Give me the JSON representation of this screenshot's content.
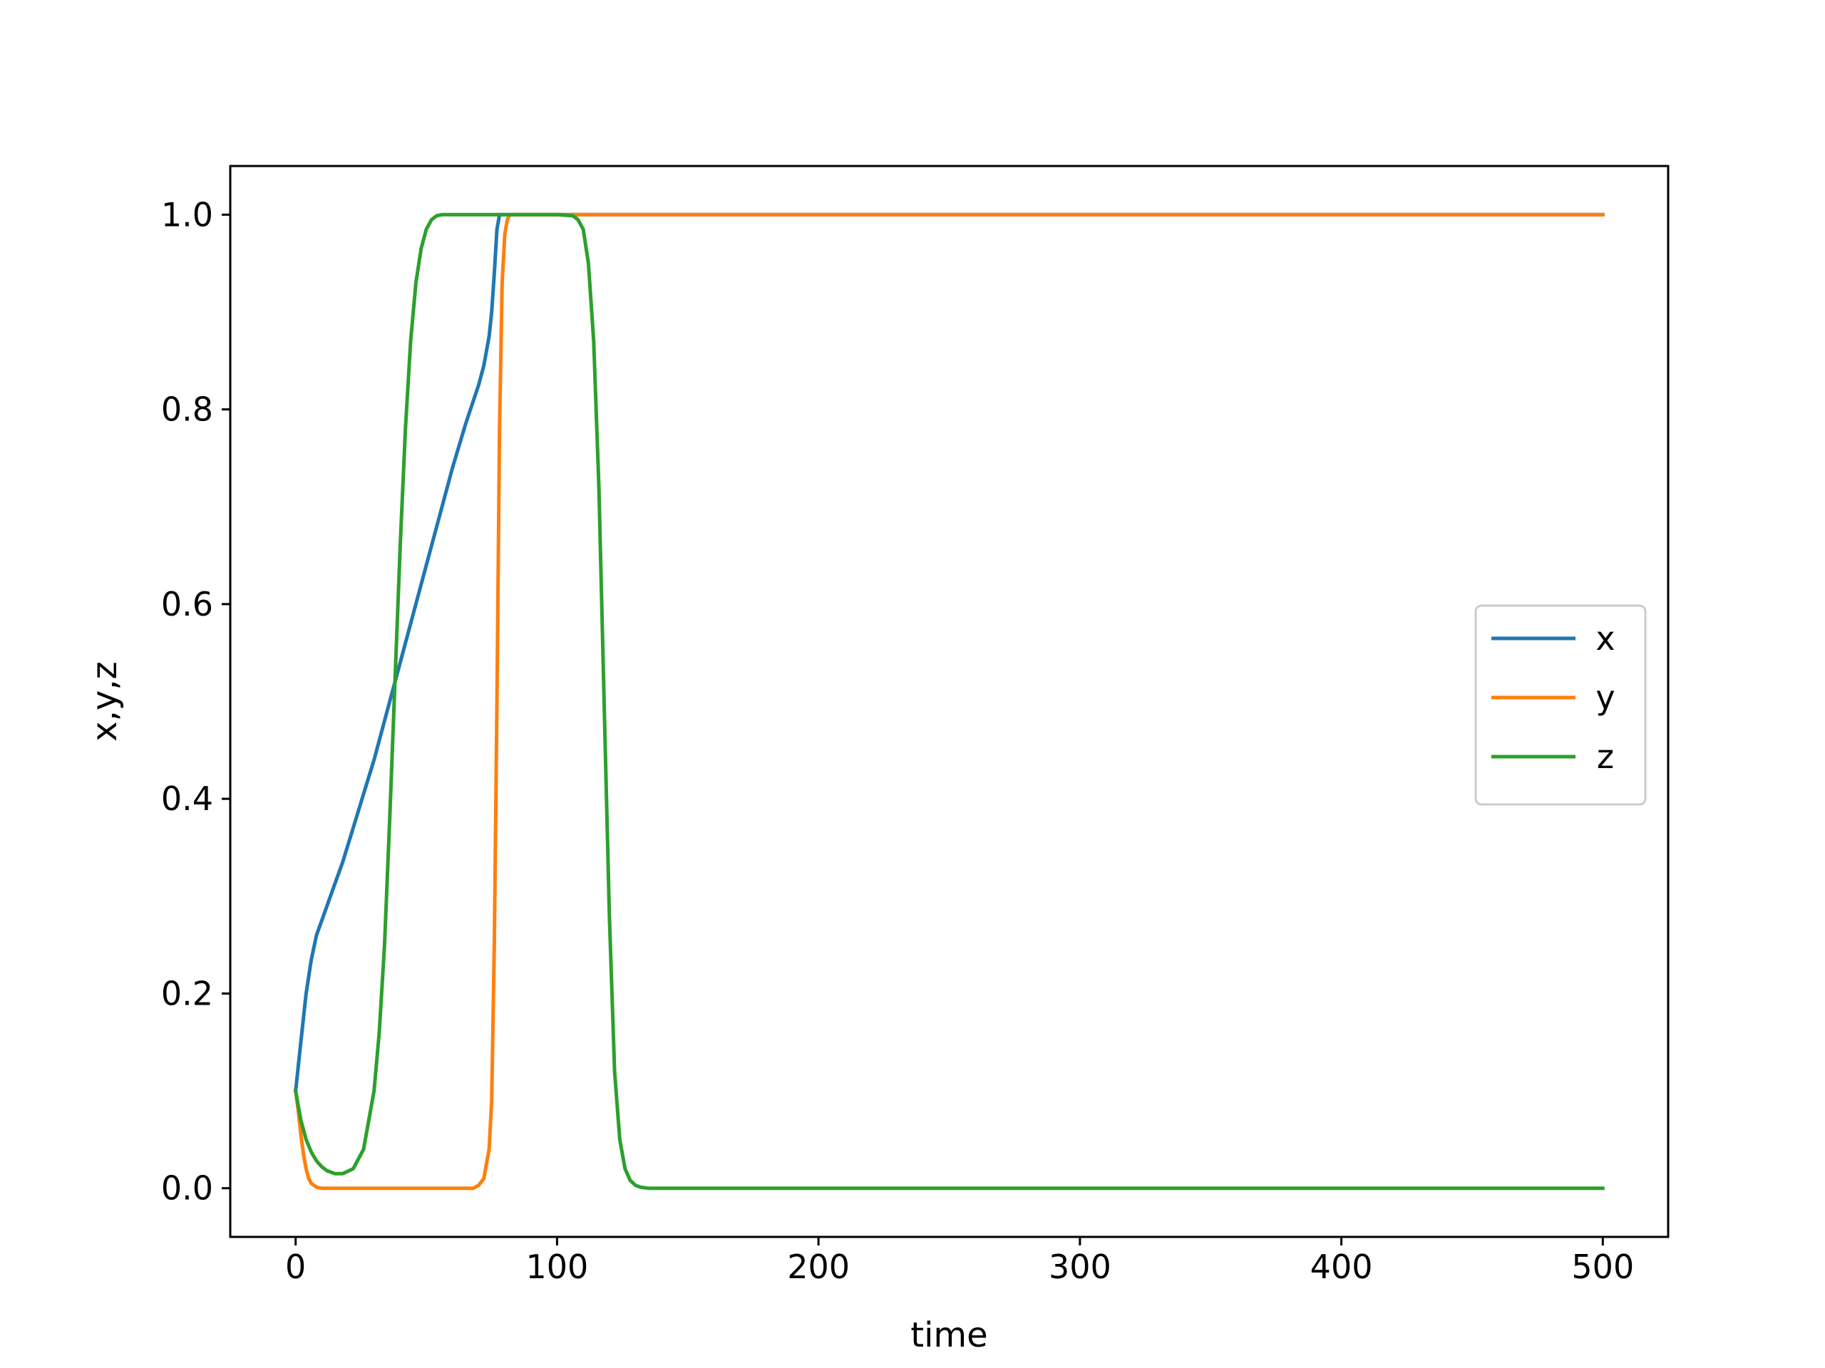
{
  "chart_data": {
    "type": "line",
    "title": "",
    "xlabel": "time",
    "ylabel": "x,y,z",
    "xlim": [
      -25,
      525
    ],
    "ylim": [
      -0.05,
      1.05
    ],
    "xticks": [
      0,
      100,
      200,
      300,
      400,
      500
    ],
    "xtick_labels": [
      "0",
      "100",
      "200",
      "300",
      "400",
      "500"
    ],
    "yticks": [
      0.0,
      0.2,
      0.4,
      0.6,
      0.8,
      1.0
    ],
    "ytick_labels": [
      "0.0",
      "0.2",
      "0.4",
      "0.6",
      "0.8",
      "1.0"
    ],
    "grid": false,
    "legend_position": "center-right",
    "series": [
      {
        "name": "x",
        "color": "#1f77b4",
        "x": [
          0,
          2,
          4,
          6,
          8,
          10,
          14,
          18,
          22,
          26,
          30,
          35,
          40,
          45,
          50,
          55,
          60,
          65,
          70,
          72,
          74,
          75,
          76,
          77,
          78,
          80,
          100,
          200,
          300,
          400,
          500
        ],
        "y": [
          0.1,
          0.15,
          0.2,
          0.235,
          0.26,
          0.275,
          0.305,
          0.335,
          0.37,
          0.405,
          0.44,
          0.49,
          0.54,
          0.59,
          0.64,
          0.69,
          0.74,
          0.785,
          0.825,
          0.845,
          0.875,
          0.9,
          0.94,
          0.985,
          1.0,
          1.0,
          1.0,
          1.0,
          1.0,
          1.0,
          1.0
        ]
      },
      {
        "name": "y",
        "color": "#ff7f0e",
        "x": [
          0,
          1,
          2,
          3,
          4,
          5,
          6,
          8,
          10,
          15,
          20,
          40,
          60,
          68,
          70,
          72,
          74,
          75,
          76,
          77,
          78,
          79,
          80,
          81,
          82,
          84,
          86,
          100,
          200,
          300,
          400,
          500
        ],
        "y": [
          0.1,
          0.08,
          0.055,
          0.035,
          0.02,
          0.01,
          0.005,
          0.001,
          0.0,
          0.0,
          0.0,
          0.0,
          0.0,
          0.0,
          0.003,
          0.01,
          0.04,
          0.09,
          0.25,
          0.5,
          0.78,
          0.93,
          0.98,
          0.995,
          1.0,
          1.0,
          1.0,
          1.0,
          1.0,
          1.0,
          1.0,
          1.0
        ]
      },
      {
        "name": "z",
        "color": "#2ca02c",
        "x": [
          0,
          1,
          2,
          4,
          6,
          8,
          10,
          12,
          15,
          18,
          22,
          26,
          30,
          32,
          34,
          36,
          38,
          40,
          42,
          44,
          46,
          48,
          50,
          52,
          54,
          56,
          60,
          100,
          106,
          108,
          110,
          112,
          114,
          116,
          118,
          120,
          122,
          124,
          126,
          128,
          130,
          132,
          135,
          140,
          200,
          300,
          400,
          500
        ],
        "y": [
          0.1,
          0.085,
          0.07,
          0.05,
          0.037,
          0.028,
          0.022,
          0.018,
          0.015,
          0.015,
          0.02,
          0.04,
          0.1,
          0.16,
          0.25,
          0.38,
          0.52,
          0.66,
          0.78,
          0.87,
          0.93,
          0.965,
          0.985,
          0.995,
          0.999,
          1.0,
          1.0,
          1.0,
          0.999,
          0.995,
          0.985,
          0.95,
          0.87,
          0.72,
          0.5,
          0.28,
          0.12,
          0.05,
          0.02,
          0.008,
          0.003,
          0.001,
          0.0,
          0.0,
          0.0,
          0.0,
          0.0,
          0.0
        ]
      }
    ]
  }
}
